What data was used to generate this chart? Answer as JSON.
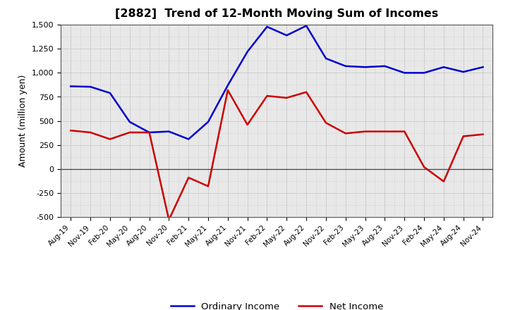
{
  "title": "[2882]  Trend of 12-Month Moving Sum of Incomes",
  "ylabel": "Amount (million yen)",
  "background_color": "#ffffff",
  "plot_bg_color": "#e8e8e8",
  "grid_color": "#aaaaaa",
  "x_labels": [
    "Aug-19",
    "Nov-19",
    "Feb-20",
    "May-20",
    "Aug-20",
    "Nov-20",
    "Feb-21",
    "May-21",
    "Aug-21",
    "Nov-21",
    "Feb-22",
    "May-22",
    "Aug-22",
    "Nov-22",
    "Feb-23",
    "May-23",
    "Aug-23",
    "Nov-23",
    "Feb-24",
    "May-24",
    "Aug-24",
    "Nov-24"
  ],
  "ordinary_income": [
    860,
    855,
    790,
    490,
    380,
    390,
    310,
    490,
    870,
    1220,
    1480,
    1390,
    1490,
    1150,
    1070,
    1060,
    1070,
    1000,
    1000,
    1060,
    1010,
    1060
  ],
  "net_income": [
    400,
    380,
    310,
    380,
    380,
    -530,
    -90,
    -180,
    820,
    460,
    760,
    740,
    800,
    480,
    370,
    390,
    390,
    390,
    20,
    -130,
    340,
    360
  ],
  "ordinary_color": "#0000cc",
  "net_color": "#cc0000",
  "ylim": [
    -500,
    1500
  ],
  "yticks": [
    -500,
    -250,
    0,
    250,
    500,
    750,
    1000,
    1250,
    1500
  ],
  "legend_ordinary": "Ordinary Income",
  "legend_net": "Net Income"
}
